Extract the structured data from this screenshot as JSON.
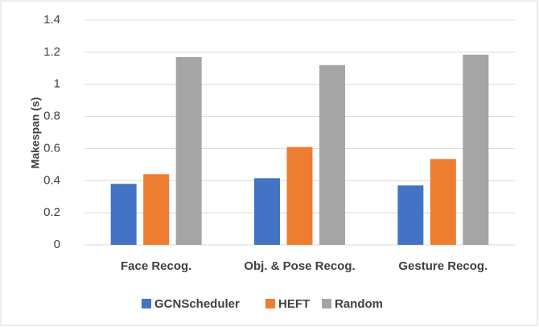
{
  "chart_data": {
    "type": "bar",
    "y_label": "Makespan (s)",
    "categories": [
      "Face Recog.",
      "Obj. & Pose Recog.",
      "Gesture Recog."
    ],
    "series": [
      {
        "name": "GCNScheduler",
        "color": "#4472c4",
        "values": [
          0.38,
          0.415,
          0.37
        ]
      },
      {
        "name": "HEFT",
        "color": "#ed7d31",
        "values": [
          0.44,
          0.61,
          0.535
        ]
      },
      {
        "name": "Random",
        "color": "#a5a5a5",
        "values": [
          1.17,
          1.12,
          1.185
        ]
      }
    ],
    "ylim": [
      0,
      1.4
    ],
    "yticks": [
      0,
      0.2,
      0.4,
      0.6,
      0.8,
      1,
      1.2,
      1.4
    ],
    "grid": true,
    "legend": "bottom"
  }
}
